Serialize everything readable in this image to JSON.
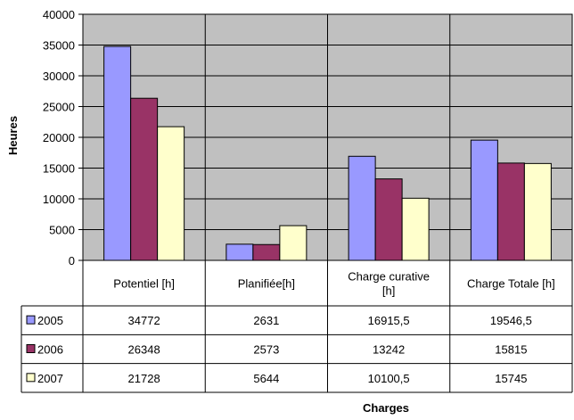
{
  "chart_data": {
    "type": "bar",
    "title": "",
    "xlabel": "Charges",
    "ylabel": "Heures",
    "ylim": [
      0,
      40000
    ],
    "yticks": [
      0,
      5000,
      10000,
      15000,
      20000,
      25000,
      30000,
      35000,
      40000
    ],
    "grid": "vertical category dividers and horizontal gridlines",
    "legend": "data-table",
    "categories": [
      [
        "Potentiel [h]"
      ],
      [
        "Planifiée[h]"
      ],
      [
        "Charge curative",
        "[h]"
      ],
      [
        "Charge Totale [h]"
      ]
    ],
    "series": [
      {
        "name": "2005",
        "color": "#9999ff",
        "values": [
          34772,
          2631,
          16915.5,
          19546.5
        ],
        "labels": [
          "34772",
          "2631",
          "16915,5",
          "19546,5"
        ]
      },
      {
        "name": "2006",
        "color": "#993366",
        "values": [
          26348,
          2573,
          13242,
          15815
        ],
        "labels": [
          "26348",
          "2573",
          "13242",
          "15815"
        ]
      },
      {
        "name": "2007",
        "color": "#ffffcc",
        "values": [
          21728,
          5644,
          10100.5,
          15745
        ],
        "labels": [
          "21728",
          "5644",
          "10100,5",
          "15745"
        ]
      }
    ],
    "plot_background": "#c0c0c0"
  }
}
